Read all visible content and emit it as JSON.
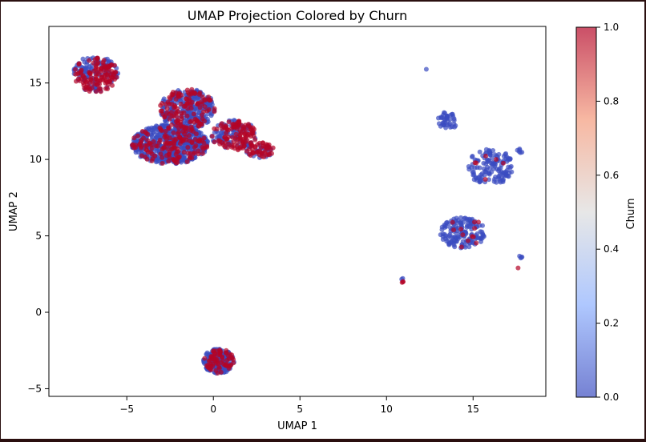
{
  "chart_data": {
    "type": "scatter",
    "title": "UMAP Projection Colored by Churn",
    "xlabel": "UMAP 1",
    "ylabel": "UMAP 2",
    "xlim": [
      -9.5,
      19.2
    ],
    "ylim": [
      -5.5,
      18.7
    ],
    "xticks": [
      -5,
      0,
      5,
      10,
      15
    ],
    "yticks": [
      -5,
      0,
      5,
      10,
      15
    ],
    "grid": false,
    "colormap": "coolwarm",
    "colorbar": {
      "label": "Churn",
      "range": [
        0.0,
        1.0
      ],
      "ticks": [
        "0.0",
        "0.2",
        "0.4",
        "0.6",
        "0.8",
        "1.0"
      ],
      "colors": [
        "#3b4cc0",
        "#8db0fe",
        "#dddddd",
        "#f49a7b",
        "#b40426"
      ]
    },
    "point_alpha": 0.7,
    "clusters": [
      {
        "cx": -6.8,
        "cy": 15.6,
        "rx": 1.3,
        "ry": 1.2,
        "n": 240,
        "churn_frac": 0.45
      },
      {
        "cx": -2.5,
        "cy": 11.0,
        "rx": 2.2,
        "ry": 1.3,
        "n": 700,
        "churn_frac": 0.22
      },
      {
        "cx": -1.5,
        "cy": 13.3,
        "rx": 1.6,
        "ry": 1.3,
        "n": 380,
        "churn_frac": 0.3
      },
      {
        "cx": 1.2,
        "cy": 11.6,
        "rx": 1.3,
        "ry": 1.0,
        "n": 200,
        "churn_frac": 0.55
      },
      {
        "cx": 2.7,
        "cy": 10.6,
        "rx": 0.8,
        "ry": 0.5,
        "n": 70,
        "churn_frac": 0.6
      },
      {
        "cx": 0.3,
        "cy": -3.2,
        "rx": 0.9,
        "ry": 0.8,
        "n": 260,
        "churn_frac": 0.25
      },
      {
        "cx": 13.5,
        "cy": 12.5,
        "rx": 0.6,
        "ry": 0.6,
        "n": 40,
        "churn_frac": 0.0
      },
      {
        "cx": 16.0,
        "cy": 9.5,
        "rx": 1.3,
        "ry": 1.2,
        "n": 140,
        "churn_frac": 0.04
      },
      {
        "cx": 17.7,
        "cy": 10.5,
        "rx": 0.2,
        "ry": 0.2,
        "n": 6,
        "churn_frac": 0.0
      },
      {
        "cx": 14.4,
        "cy": 5.2,
        "rx": 1.3,
        "ry": 1.0,
        "n": 160,
        "churn_frac": 0.06
      },
      {
        "cx": 17.7,
        "cy": 3.6,
        "rx": 0.15,
        "ry": 0.1,
        "n": 4,
        "churn_frac": 0.0
      },
      {
        "cx": 11.0,
        "cy": 2.1,
        "rx": 0.15,
        "ry": 0.15,
        "n": 4,
        "churn_frac": 0.5
      }
    ],
    "points": [
      {
        "x": 12.3,
        "y": 15.9,
        "churn": 0.0
      },
      {
        "x": 17.6,
        "y": 2.9,
        "churn": 1.0
      },
      {
        "x": 10.9,
        "y": 1.95,
        "churn": 1.0
      }
    ]
  }
}
